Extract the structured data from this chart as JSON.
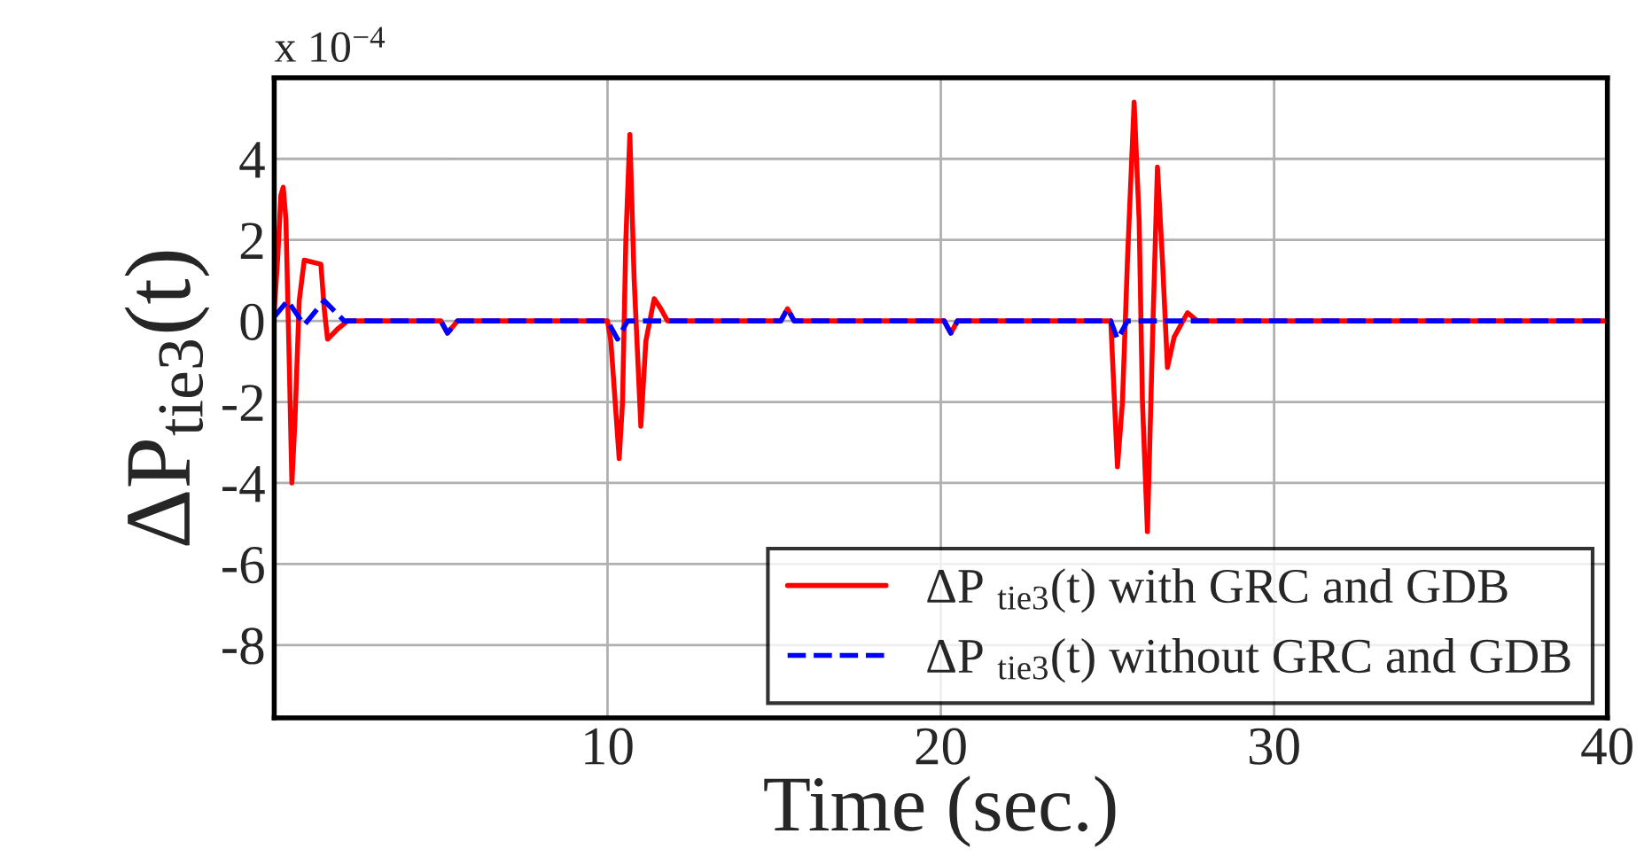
{
  "chart_data": {
    "type": "line",
    "xlabel": "Time (sec.)",
    "ylabel": "ΔP$_{tie3}$(t)",
    "annotations": [
      "x 10$^{−4}$"
    ],
    "xlim": [
      0,
      40
    ],
    "ylim": [
      -9.8,
      6
    ],
    "xticks": [
      10,
      20,
      30,
      40
    ],
    "yticks": [
      {
        "value": -8,
        "label": "-8"
      },
      {
        "value": -6,
        "label": "-6"
      },
      {
        "value": -4,
        "label": "-4"
      },
      {
        "value": -2,
        "label": "-2"
      },
      0,
      2,
      4
    ],
    "grid": true,
    "legend": "bottom right",
    "series": [
      {
        "name": "ΔP $_{tie3}$(t) with GRC and GDB",
        "color": "#ff0000",
        "line_style": "solid",
        "x": [
          0,
          0.1,
          0.2,
          0.27,
          0.35,
          0.45,
          0.53,
          0.62,
          0.75,
          0.9,
          1.4,
          1.5,
          1.6,
          1.9,
          2.2,
          5.0,
          5.2,
          5.5,
          10.0,
          10.1,
          10.35,
          10.45,
          10.55,
          10.67,
          10.8,
          11.0,
          11.15,
          11.4,
          11.6,
          11.8,
          15.2,
          15.4,
          15.6,
          20.1,
          20.3,
          20.5,
          25.1,
          25.3,
          25.45,
          25.6,
          25.8,
          25.95,
          26.05,
          26.2,
          26.35,
          26.5,
          26.65,
          26.8,
          27.0,
          27.4,
          27.7,
          40
        ],
        "values": [
          0.25,
          1.5,
          3.1,
          3.3,
          2.5,
          -1.0,
          -4.0,
          -2.5,
          0.5,
          1.5,
          1.4,
          0.3,
          -0.45,
          -0.2,
          0,
          0,
          -0.3,
          0,
          0,
          -0.5,
          -3.4,
          -2.0,
          2.0,
          4.6,
          1.0,
          -2.6,
          -0.5,
          0.55,
          0.3,
          0,
          0,
          0.3,
          0,
          0,
          -0.3,
          0,
          0,
          -3.6,
          -2.0,
          1.5,
          5.4,
          2.5,
          -2.0,
          -5.2,
          -0.5,
          3.8,
          1.5,
          -1.15,
          -0.4,
          0.2,
          0,
          0
        ]
      },
      {
        "name": "ΔP $_{tie3}$(t) without GRC and GDB",
        "color": "#0000ff",
        "line_style": "dashed",
        "x": [
          0,
          0.4,
          0.9,
          1.5,
          2.1,
          5.0,
          5.2,
          5.5,
          10.0,
          10.3,
          10.6,
          15.2,
          15.4,
          15.6,
          20.1,
          20.3,
          20.5,
          25.1,
          25.3,
          25.6,
          40
        ],
        "values": [
          0.1,
          0.5,
          -0.1,
          0.5,
          0,
          0,
          -0.3,
          0,
          0,
          -0.45,
          0,
          0,
          0.3,
          0,
          0,
          -0.3,
          0,
          0,
          -0.45,
          0,
          0
        ]
      }
    ]
  }
}
